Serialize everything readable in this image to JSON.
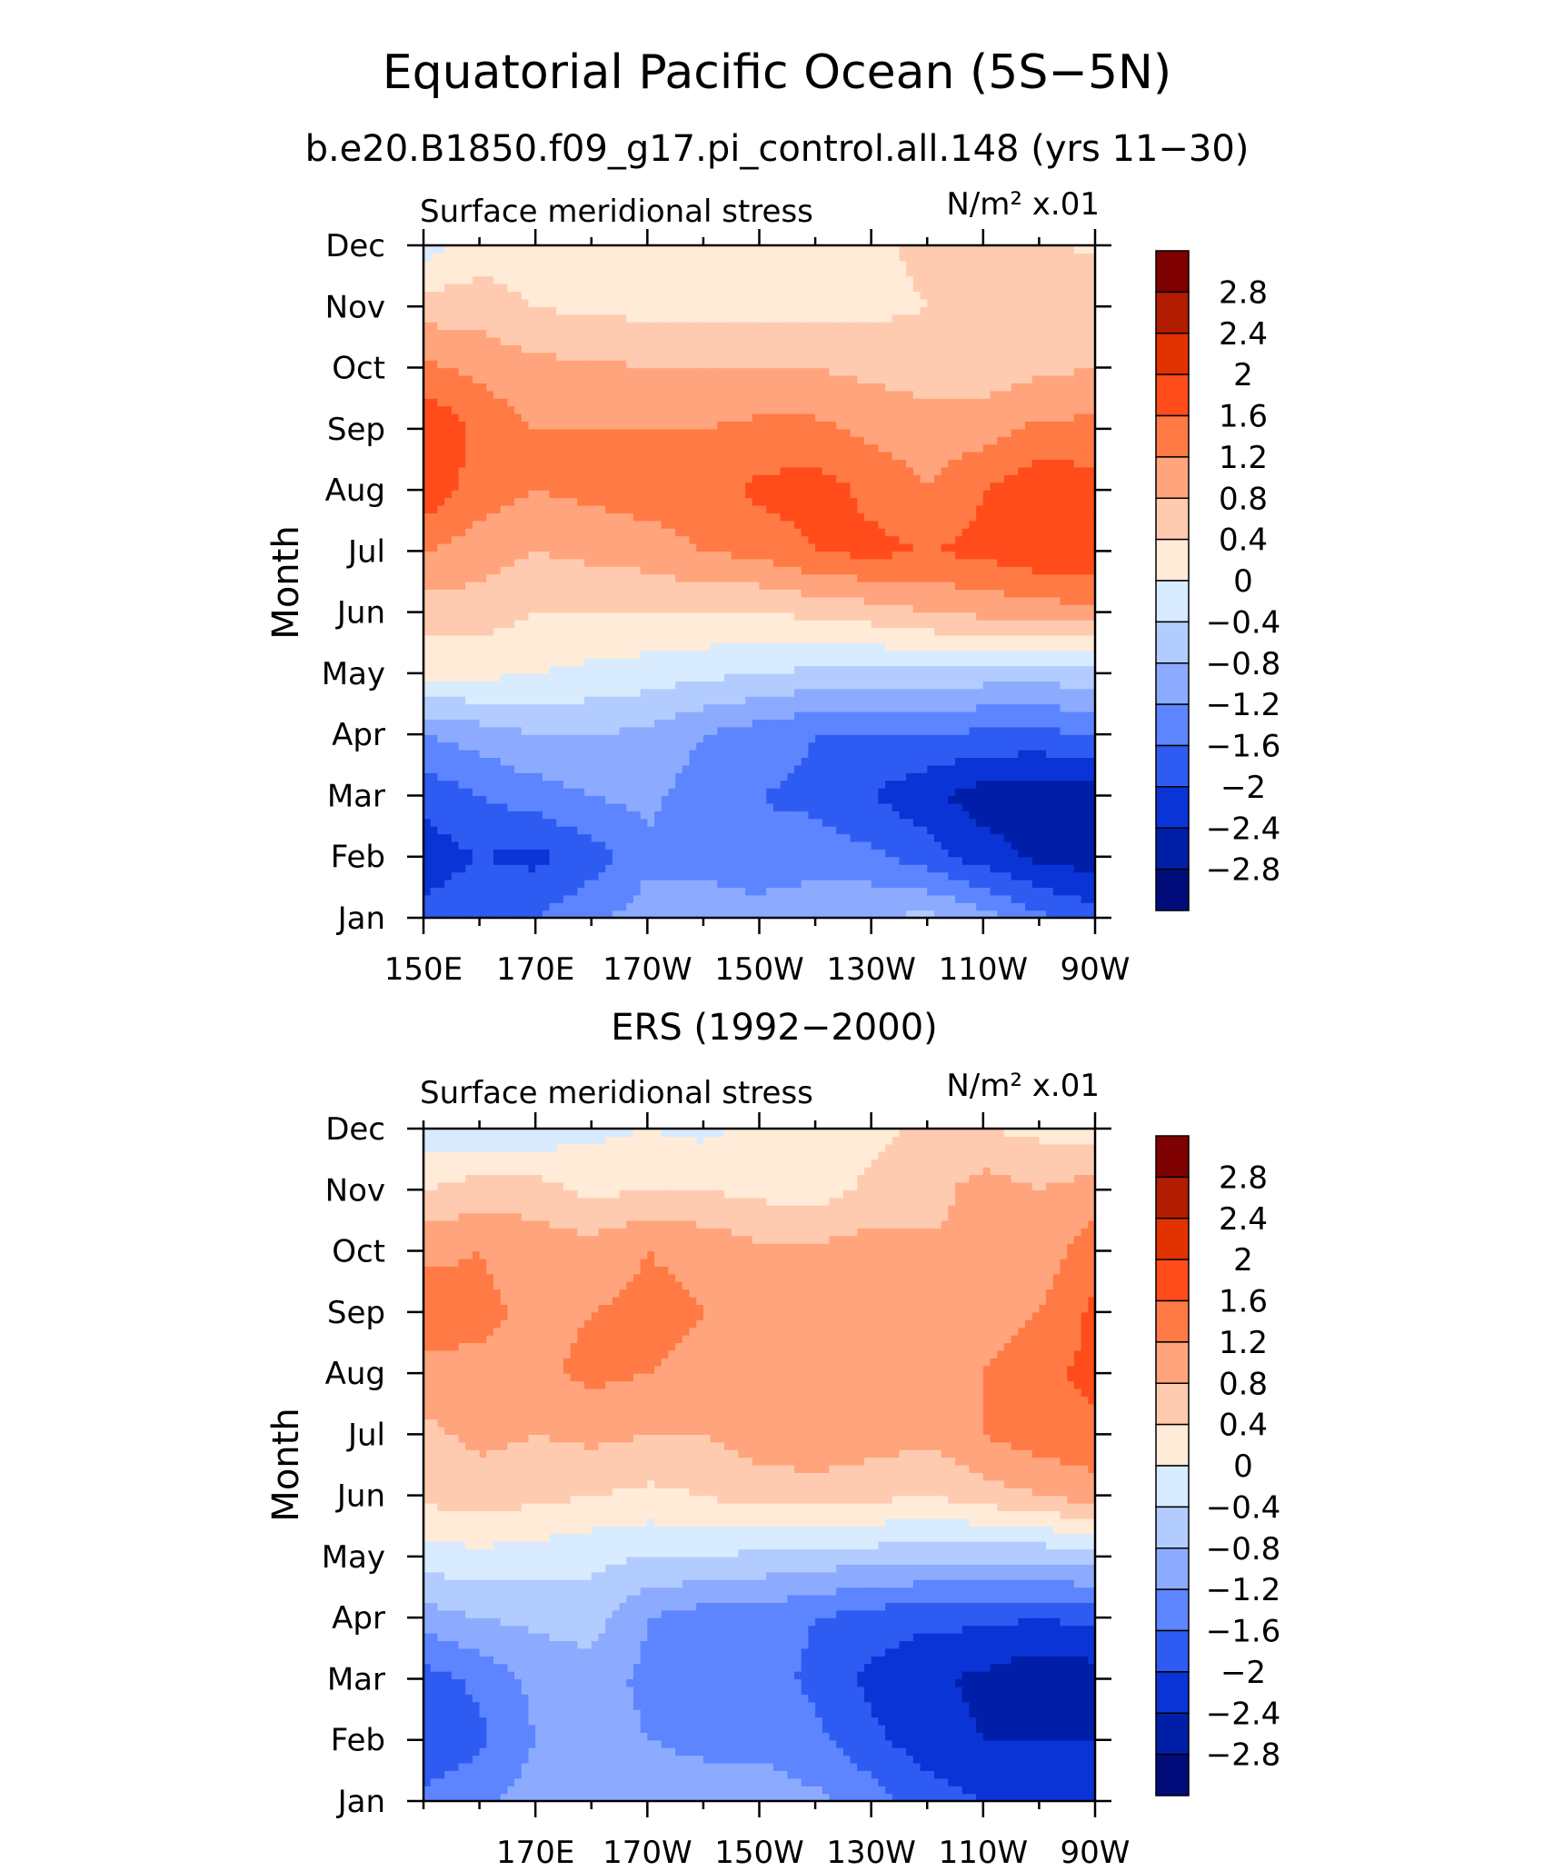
{
  "title": "Equatorial Pacific Ocean (5S−5N)",
  "subtitle": "b.e20.B1850.f09_g17.pi_control.all.148 (yrs 11−30)",
  "colorbar": {
    "labels": [
      "2.8",
      "2.4",
      "2",
      "1.6",
      "1.2",
      "0.8",
      "0.4",
      "0",
      "−0.4",
      "−0.8",
      "−1.2",
      "−1.6",
      "−2",
      "−2.4",
      "−2.8"
    ],
    "colors": [
      "#7f0000",
      "#b21c00",
      "#e23200",
      "#ff4c1a",
      "#ff7a44",
      "#ffa47c",
      "#ffcbb0",
      "#ffebd8",
      "#d8ebff",
      "#b3ccff",
      "#8cabff",
      "#5c85ff",
      "#2e5cf2",
      "#0a34d6",
      "#001fa8",
      "#000c7a"
    ]
  },
  "chart_data": [
    {
      "type": "heatmap",
      "title": "",
      "variable_label": "Surface meridional stress",
      "units_label": "N/m² x.01",
      "ylabel": "Month",
      "xlabel": "",
      "x_ticks": [
        "150E",
        "170E",
        "170W",
        "150W",
        "130W",
        "110W",
        "90W"
      ],
      "y_ticks": [
        "Jan",
        "Feb",
        "Mar",
        "Apr",
        "May",
        "Jun",
        "Jul",
        "Aug",
        "Sep",
        "Oct",
        "Nov",
        "Dec"
      ],
      "x": [
        150,
        160,
        170,
        180,
        190,
        200,
        210,
        220,
        230,
        240,
        250,
        260,
        270
      ],
      "y": [
        "Jan",
        "Feb",
        "Mar",
        "Apr",
        "May",
        "Jun",
        "Jul",
        "Aug",
        "Sep",
        "Oct",
        "Nov",
        "Dec"
      ],
      "values": [
        [
          -1.9,
          -1.7,
          -1.6,
          -1.3,
          -1.0,
          -1.0,
          -1.0,
          -0.9,
          -0.8,
          -0.7,
          -1.0,
          -1.5,
          -1.8
        ],
        [
          -2.2,
          -2.0,
          -2.1,
          -1.8,
          -1.3,
          -1.3,
          -1.5,
          -1.4,
          -1.5,
          -1.8,
          -2.2,
          -2.5,
          -2.6
        ],
        [
          -1.9,
          -1.6,
          -1.4,
          -1.2,
          -1.1,
          -1.4,
          -1.6,
          -1.7,
          -2.0,
          -2.3,
          -2.6,
          -2.7,
          -2.6
        ],
        [
          -1.2,
          -1.0,
          -0.8,
          -0.8,
          -0.9,
          -1.2,
          -1.4,
          -1.6,
          -1.6,
          -1.6,
          -1.7,
          -1.7,
          -1.6
        ],
        [
          0.1,
          0.1,
          0.0,
          -0.1,
          -0.2,
          -0.3,
          -0.4,
          -0.5,
          -0.5,
          -0.5,
          -0.6,
          -0.6,
          -0.6
        ],
        [
          0.6,
          0.6,
          0.4,
          0.4,
          0.4,
          0.4,
          0.4,
          0.5,
          0.6,
          0.8,
          0.9,
          1.0,
          1.1
        ],
        [
          1.2,
          1.0,
          0.8,
          0.9,
          1.0,
          1.2,
          1.3,
          1.6,
          1.7,
          1.6,
          1.7,
          1.9,
          1.9
        ],
        [
          1.9,
          1.4,
          1.2,
          1.3,
          1.4,
          1.4,
          1.7,
          1.8,
          1.5,
          1.2,
          1.6,
          1.9,
          1.8
        ],
        [
          2.0,
          1.5,
          1.2,
          1.2,
          1.2,
          1.2,
          1.3,
          1.3,
          1.1,
          1.0,
          1.0,
          1.3,
          1.3
        ],
        [
          1.3,
          1.1,
          0.9,
          0.9,
          0.8,
          0.8,
          0.8,
          0.8,
          0.7,
          0.6,
          0.6,
          0.7,
          0.8
        ],
        [
          0.6,
          0.6,
          0.4,
          0.3,
          0.3,
          0.3,
          0.3,
          0.3,
          0.3,
          0.4,
          0.6,
          0.7,
          0.8
        ],
        [
          -0.2,
          0.2,
          0.2,
          0.1,
          0.1,
          0.1,
          0.1,
          0.1,
          0.3,
          0.5,
          0.6,
          0.5,
          0.3
        ]
      ],
      "levels": [
        -2.8,
        -2.4,
        -2.0,
        -1.6,
        -1.2,
        -0.8,
        -0.4,
        0,
        0.4,
        0.8,
        1.2,
        1.6,
        2.0,
        2.4,
        2.8
      ],
      "zlim": [
        -3.2,
        3.2
      ]
    },
    {
      "type": "heatmap",
      "title": "ERS (1992−2000)",
      "variable_label": "Surface meridional stress",
      "units_label": "N/m² x.01",
      "ylabel": "Month",
      "xlabel": "",
      "x_ticks": [
        "170E",
        "170W",
        "150W",
        "130W",
        "110W",
        "90W"
      ],
      "y_ticks": [
        "Jan",
        "Feb",
        "Mar",
        "Apr",
        "May",
        "Jun",
        "Jul",
        "Aug",
        "Sep",
        "Oct",
        "Nov",
        "Dec"
      ],
      "x": [
        150,
        160,
        170,
        180,
        190,
        200,
        210,
        220,
        230,
        240,
        250,
        260,
        270
      ],
      "y": [
        "Jan",
        "Feb",
        "Mar",
        "Apr",
        "May",
        "Jun",
        "Jul",
        "Aug",
        "Sep",
        "Oct",
        "Nov",
        "Dec"
      ],
      "values": [
        [
          -1.5,
          -1.3,
          -1.0,
          -0.8,
          -0.9,
          -1.0,
          -1.0,
          -1.1,
          -1.4,
          -1.8,
          -2.0,
          -2.2,
          -2.3
        ],
        [
          -1.9,
          -1.7,
          -1.2,
          -1.0,
          -1.2,
          -1.3,
          -1.3,
          -1.5,
          -1.9,
          -2.2,
          -2.4,
          -2.4,
          -2.4
        ],
        [
          -1.8,
          -1.5,
          -1.1,
          -1.0,
          -1.3,
          -1.4,
          -1.4,
          -1.7,
          -2.1,
          -2.3,
          -2.5,
          -2.7,
          -2.6
        ],
        [
          -1.0,
          -0.8,
          -0.7,
          -0.6,
          -1.2,
          -1.4,
          -1.4,
          -1.6,
          -1.8,
          -1.9,
          -1.9,
          -2.0,
          -1.9
        ],
        [
          -0.2,
          -0.1,
          -0.2,
          -0.3,
          -0.4,
          -0.4,
          -0.5,
          -0.6,
          -0.6,
          -0.7,
          -0.7,
          -0.7,
          -0.6
        ],
        [
          0.5,
          0.6,
          0.5,
          0.4,
          0.3,
          0.4,
          0.6,
          0.6,
          0.5,
          0.4,
          0.6,
          0.8,
          1.0
        ],
        [
          0.7,
          0.9,
          0.8,
          0.9,
          0.8,
          0.8,
          1.0,
          1.1,
          1.0,
          0.9,
          1.2,
          1.4,
          1.5
        ],
        [
          1.0,
          1.1,
          1.1,
          1.3,
          1.2,
          1.1,
          1.1,
          1.2,
          1.1,
          1.0,
          1.2,
          1.5,
          1.7
        ],
        [
          1.5,
          1.3,
          1.1,
          1.2,
          1.3,
          1.2,
          1.1,
          1.0,
          0.9,
          0.9,
          1.0,
          1.2,
          1.7
        ],
        [
          1.1,
          1.2,
          1.0,
          1.0,
          1.2,
          1.1,
          0.9,
          0.9,
          1.0,
          0.9,
          0.8,
          1.0,
          1.4
        ],
        [
          0.4,
          0.6,
          0.6,
          0.3,
          0.4,
          0.4,
          0.3,
          0.2,
          0.5,
          0.6,
          1.0,
          0.8,
          1.0
        ],
        [
          -0.2,
          -0.3,
          -0.3,
          -0.1,
          0.0,
          -0.1,
          0.1,
          0.2,
          0.3,
          0.5,
          0.4,
          0.3,
          0.2
        ]
      ],
      "levels": [
        -2.8,
        -2.4,
        -2.0,
        -1.6,
        -1.2,
        -0.8,
        -0.4,
        0,
        0.4,
        0.8,
        1.2,
        1.6,
        2.0,
        2.4,
        2.8
      ],
      "zlim": [
        -3.2,
        3.2
      ]
    }
  ]
}
